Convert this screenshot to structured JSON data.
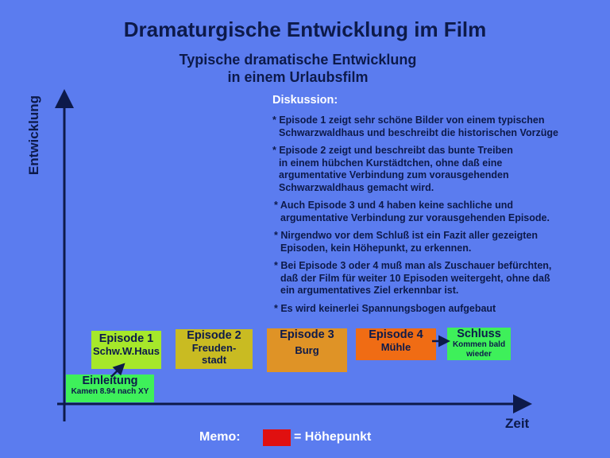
{
  "title": "Dramaturgische Entwicklung im Film",
  "subtitle": [
    "Typische dramatische Entwicklung",
    "in einem Urlaubsfilm"
  ],
  "axes": {
    "y": "Entwicklung",
    "x": "Zeit"
  },
  "discussion": {
    "heading": "Diskussion:",
    "paragraphs": [
      [
        "* Episode 1 zeigt sehr schöne Bilder von einem typischen",
        "Schwarzwaldhaus und beschreibt die historischen Vorzüge"
      ],
      [
        "* Episode 2 zeigt und beschreibt das bunte Treiben",
        "in einem hübchen Kurstädtchen, ohne daß eine",
        "argumentative Verbindung zum vorausgehenden",
        "Schwarzwaldhaus gemacht wird."
      ],
      [
        "* Auch Episode 3 und 4 haben keine sachliche und",
        "argumentative Verbindung zur vorausgehenden Episode."
      ],
      [
        "* Nirgendwo vor dem Schluß ist ein Fazit aller gezeigten",
        "Episoden, kein Höhepunkt, zu erkennen."
      ],
      [
        "* Bei Episode 3 oder 4 muß man als Zuschauer befürchten,",
        "daß der Film für weiter 10 Episoden weitergeht, ohne daß",
        "ein argumentatives Ziel erkennbar ist."
      ],
      [
        "* Es wird keinerlei Spannungsbogen aufgebaut"
      ]
    ]
  },
  "boxes": {
    "einleitung": {
      "title": "Einleitung",
      "sub": "Kamen 8.94 nach XY",
      "color": "#3ef05a"
    },
    "ep1": {
      "title": "Episode 1",
      "sub": "Schw.W.Haus",
      "color": "#a6e82a"
    },
    "ep2": {
      "title": "Episode 2",
      "sub1": "Freuden-",
      "sub2": "stadt",
      "color": "#c9bb22"
    },
    "ep3": {
      "title": "Episode 3",
      "sub": "Burg",
      "color": "#df9326"
    },
    "ep4": {
      "title": "Episode 4",
      "sub": "Mühle",
      "color": "#f06c14"
    },
    "schluss": {
      "title": "Schluss",
      "sub1": "Kommen bald",
      "sub2": "wieder",
      "color": "#3ef05a"
    }
  },
  "memo": {
    "label": "Memo:",
    "legend": "=  Höhepunkt",
    "color": "#e01010"
  }
}
